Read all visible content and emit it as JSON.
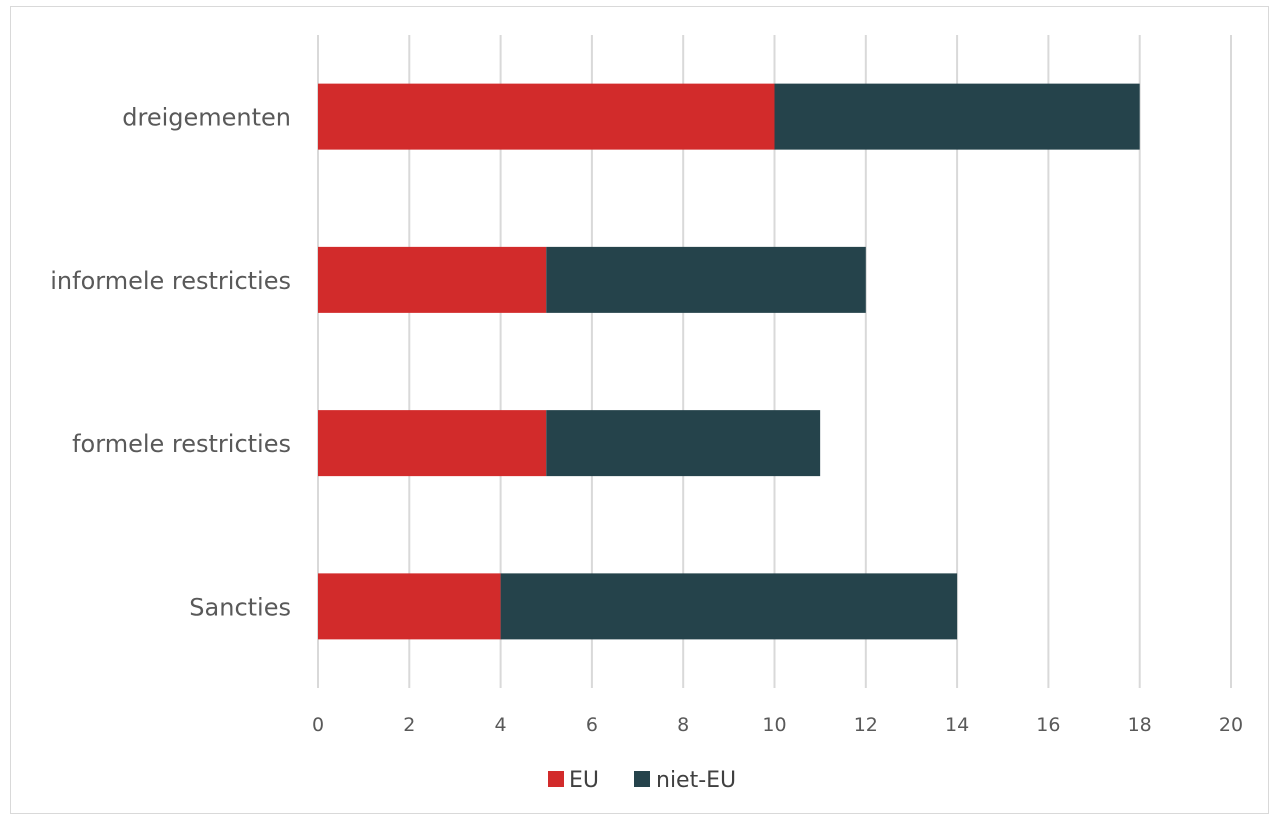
{
  "chart_data": {
    "type": "bar",
    "orientation": "horizontal",
    "stacked": true,
    "categories": [
      "dreigementen",
      "informele restricties",
      "formele restricties",
      "Sancties"
    ],
    "series": [
      {
        "name": "EU",
        "values": [
          10,
          5,
          5,
          4
        ],
        "color": "#d22b2b"
      },
      {
        "name": "niet-EU",
        "values": [
          8,
          7,
          6,
          10
        ],
        "color": "#25434b"
      }
    ],
    "xlim": [
      0,
      20
    ],
    "xticks": [
      0,
      2,
      4,
      6,
      8,
      10,
      12,
      14,
      16,
      18,
      20
    ],
    "grid": true,
    "legend": "bottom",
    "title": "",
    "xlabel": "",
    "ylabel": ""
  }
}
